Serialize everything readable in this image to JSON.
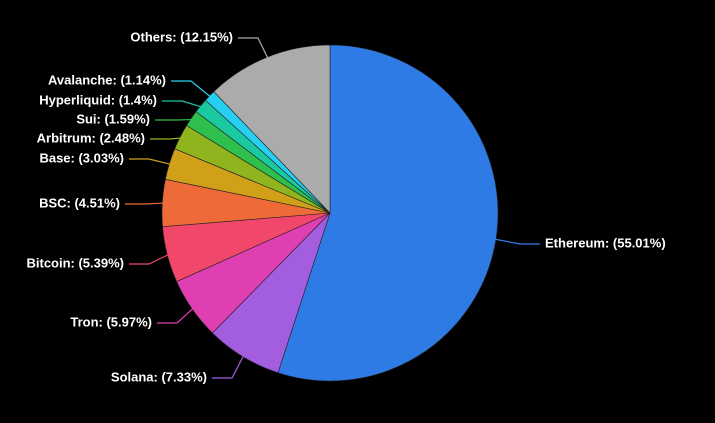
{
  "chart_data": {
    "type": "pie",
    "values": [
      55.01,
      7.33,
      5.97,
      5.39,
      4.51,
      3.03,
      2.48,
      1.59,
      1.4,
      1.14,
      12.15
    ],
    "value_labels": [
      "Ethereum: (55.01%)",
      "Solana: (7.33%)",
      "Tron: (5.97%)",
      "Bitcoin: (5.39%)",
      "BSC: (4.51%)",
      "Base: (3.03%)",
      "Arbitrum: (2.48%)",
      "Sui: (1.59%)",
      "Hyperliquid: (1.4%)",
      "Avalanche: (1.14%)",
      "Others: (12.15%)"
    ],
    "colors": [
      "#2f7be5",
      "#a35ddf",
      "#e03fb2",
      "#f0476b",
      "#ee6a38",
      "#d1a019",
      "#8fb41d",
      "#2fbf4d",
      "#1ac9a0",
      "#27d0f2",
      "#ababab"
    ]
  }
}
